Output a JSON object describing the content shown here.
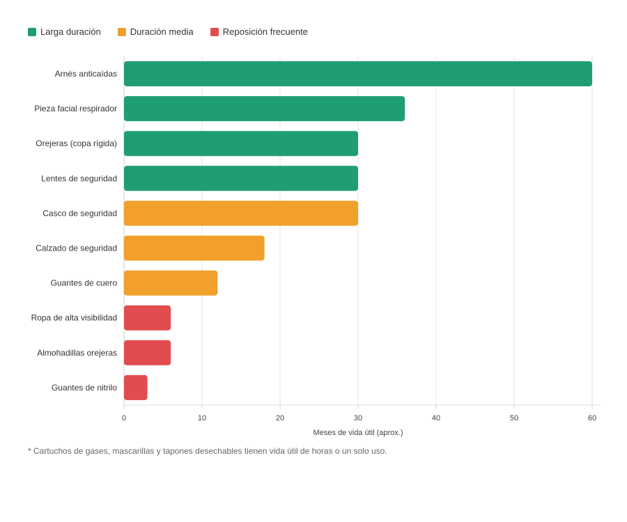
{
  "chart_data": {
    "type": "bar",
    "orientation": "horizontal",
    "legend": [
      {
        "label": "Larga duración",
        "color": "#1f9e76"
      },
      {
        "label": "Duración media",
        "color": "#f0a02b"
      },
      {
        "label": "Reposición frecuente",
        "color": "#e24c4e"
      }
    ],
    "legend_placement": "top-left",
    "categories": [
      "Arnés anticaídas",
      "Pieza facial respirador",
      "Orejeras (copa rígida)",
      "Lentes de seguridad",
      "Casco de seguridad",
      "Calzado de seguridad",
      "Guantes de cuero",
      "Ropa de alta visibilidad",
      "Almohadillas orejeras",
      "Guantes de nitrilo"
    ],
    "values": [
      60,
      36,
      30,
      30,
      30,
      18,
      12,
      6,
      6,
      3
    ],
    "groups": [
      0,
      0,
      0,
      0,
      1,
      1,
      1,
      2,
      2,
      2
    ],
    "xlabel": "Meses de vida útil (aprox.)",
    "xlim": [
      0,
      60
    ],
    "xticks": [
      0,
      10,
      20,
      30,
      40,
      50,
      60
    ],
    "grid": true
  },
  "footnote": "* Cartuchos de gases, mascarillas y tapones desechables tienen vida útil de horas o un solo uso."
}
